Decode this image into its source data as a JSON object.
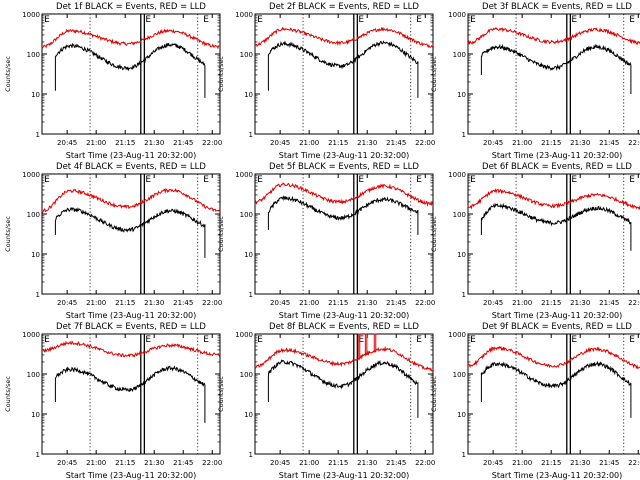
{
  "panels": [
    {
      "title": "Det 1f BLACK = Events, RED = LLD",
      "xlabel": "Start Time (23-Aug-11 20:32:00)",
      "ylabel": "Counts/sec",
      "red_level": [
        150,
        380,
        180,
        380,
        150
      ],
      "black_level": [
        60,
        160,
        45,
        170,
        40
      ],
      "black_drop": [
        12,
        8
      ]
    },
    {
      "title": "Det 2f BLACK = Events, RED = LLD",
      "xlabel": "Start Time (23-Aug-11 20:32:00)",
      "ylabel": "Counts/sec",
      "red_level": [
        170,
        420,
        190,
        420,
        160
      ],
      "black_level": [
        70,
        180,
        50,
        190,
        45
      ],
      "black_drop": [
        12,
        8
      ]
    },
    {
      "title": "Det 3f BLACK = Events, RED = LLD",
      "xlabel": "Start Time (23-Aug-11 20:32:00)",
      "ylabel": "Counts/sec",
      "red_level": [
        190,
        420,
        200,
        410,
        180
      ],
      "black_level": [
        60,
        150,
        45,
        150,
        40
      ],
      "black_drop": [
        30,
        10
      ]
    },
    {
      "title": "Det 4f BLACK = Events, RED = LLD",
      "xlabel": "Start Time (23-Aug-11 20:32:00)",
      "ylabel": "Counts/sec",
      "red_level": [
        120,
        380,
        150,
        400,
        120
      ],
      "black_level": [
        50,
        130,
        40,
        120,
        40
      ],
      "black_drop": [
        30,
        8
      ]
    },
    {
      "title": "Det 5f BLACK = Events, RED = LLD",
      "xlabel": "Start Time (23-Aug-11 20:32:00)",
      "ylabel": "Counts/sec",
      "red_level": [
        200,
        550,
        200,
        500,
        180
      ],
      "black_level": [
        60,
        250,
        80,
        230,
        90
      ],
      "black_drop": [
        40,
        30
      ]
    },
    {
      "title": "Det 6f BLACK = Events, RED = LLD",
      "xlabel": "Start Time (23-Aug-11 20:32:00)",
      "ylabel": "Counts/sec",
      "red_level": [
        150,
        380,
        160,
        300,
        140
      ],
      "black_level": [
        40,
        160,
        60,
        140,
        50
      ],
      "black_drop": [
        30,
        12
      ]
    },
    {
      "title": "Det 7f BLACK = Events, RED = LLD",
      "xlabel": "Start Time (23-Aug-11 20:32:00)",
      "ylabel": "Counts/sec",
      "red_level": [
        380,
        600,
        290,
        520,
        300
      ],
      "black_level": [
        60,
        130,
        40,
        140,
        40
      ],
      "black_drop": [
        20,
        6
      ]
    },
    {
      "title": "Det 8f BLACK = Events, RED = LLD",
      "xlabel": "Start Time (23-Aug-11 20:32:00)",
      "ylabel": "Counts/sec",
      "red_level": [
        150,
        400,
        180,
        420,
        130
      ],
      "black_level": [
        60,
        200,
        50,
        190,
        40
      ],
      "black_drop": [
        20,
        8
      ],
      "red_spikes": [
        1000,
        1000,
        1000
      ]
    },
    {
      "title": "Det 9f BLACK = Events, RED = LLD",
      "xlabel": "Start Time (23-Aug-11 20:32:00)",
      "ylabel": "Counts/sec",
      "red_level": [
        160,
        450,
        160,
        420,
        140
      ],
      "black_level": [
        60,
        180,
        50,
        180,
        40
      ],
      "black_drop": [
        20,
        8
      ]
    }
  ],
  "chart_data": {
    "type": "line",
    "layout": "3x3 small multiples",
    "yscale": "log",
    "ylim": [
      1,
      1000
    ],
    "ytick_labels": [
      "1",
      "10",
      "100",
      "1000"
    ],
    "xtick_labels": [
      "20:45",
      "21:00",
      "21:15",
      "21:30",
      "21:45",
      "22:00"
    ],
    "x_range_minutes": [
      0,
      92
    ],
    "series": [
      {
        "name": "BLACK = Events",
        "color": "#000000"
      },
      {
        "name": "RED = LLD",
        "color": "#e00000"
      }
    ],
    "marker_label": "E",
    "colors": {
      "events": "#000000",
      "lld": "#e00000",
      "axes": "#000000"
    }
  }
}
